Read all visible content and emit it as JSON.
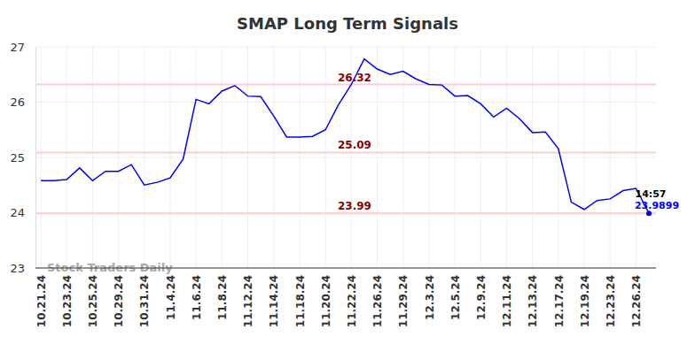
{
  "chart_data": {
    "type": "line",
    "title": "SMAP Long Term Signals",
    "categories": [
      "10.21.24",
      null,
      "10.23.24",
      null,
      "10.25.24",
      null,
      "10.29.24",
      null,
      "10.31.24",
      null,
      "11.4.24",
      null,
      "11.6.24",
      null,
      "11.8.24",
      null,
      "11.12.24",
      null,
      "11.14.24",
      null,
      "11.18.24",
      null,
      "11.20.24",
      null,
      "11.22.24",
      null,
      "11.26.24",
      null,
      "11.29.24",
      null,
      "12.3.24",
      null,
      "12.5.24",
      null,
      "12.9.24",
      null,
      "12.11.24",
      null,
      "12.13.24",
      null,
      "12.17.24",
      null,
      "12.19.24",
      null,
      "12.23.24",
      null,
      "12.26.24",
      null
    ],
    "series": [
      {
        "name": "SMAP",
        "color": "#0000ff",
        "values": [
          24.58,
          24.58,
          24.6,
          24.81,
          24.58,
          24.75,
          24.75,
          24.87,
          24.5,
          24.55,
          24.63,
          24.97,
          26.05,
          25.97,
          26.2,
          26.3,
          26.11,
          26.1,
          25.75,
          25.37,
          25.37,
          25.38,
          25.5,
          25.95,
          26.32,
          26.78,
          26.6,
          26.5,
          26.56,
          26.42,
          26.32,
          26.31,
          26.11,
          26.12,
          25.97,
          25.73,
          25.89,
          25.7,
          25.45,
          25.46,
          25.16,
          24.19,
          24.06,
          24.22,
          24.25,
          24.4,
          24.44,
          23.9899
        ],
        "value_labels": [
          null,
          null,
          null,
          null,
          null,
          null,
          null,
          null,
          null,
          null,
          null,
          null,
          null,
          null,
          null,
          null,
          null,
          null,
          null,
          null,
          null,
          null,
          null,
          null,
          null,
          null,
          null,
          null,
          null,
          null,
          null,
          null,
          null,
          null,
          null,
          null,
          null,
          null,
          null,
          null,
          null,
          null,
          null,
          null,
          null,
          null,
          null,
          "23.9899"
        ]
      }
    ],
    "annotations": [
      {
        "text": "14:57"
      }
    ],
    "hlines": [
      26.32,
      25.09,
      23.99
    ],
    "watermark": "Stock Traders Daily",
    "ylim": [
      23,
      27
    ],
    "yticks": [
      23,
      24,
      25,
      26,
      27
    ],
    "grid": true
  }
}
